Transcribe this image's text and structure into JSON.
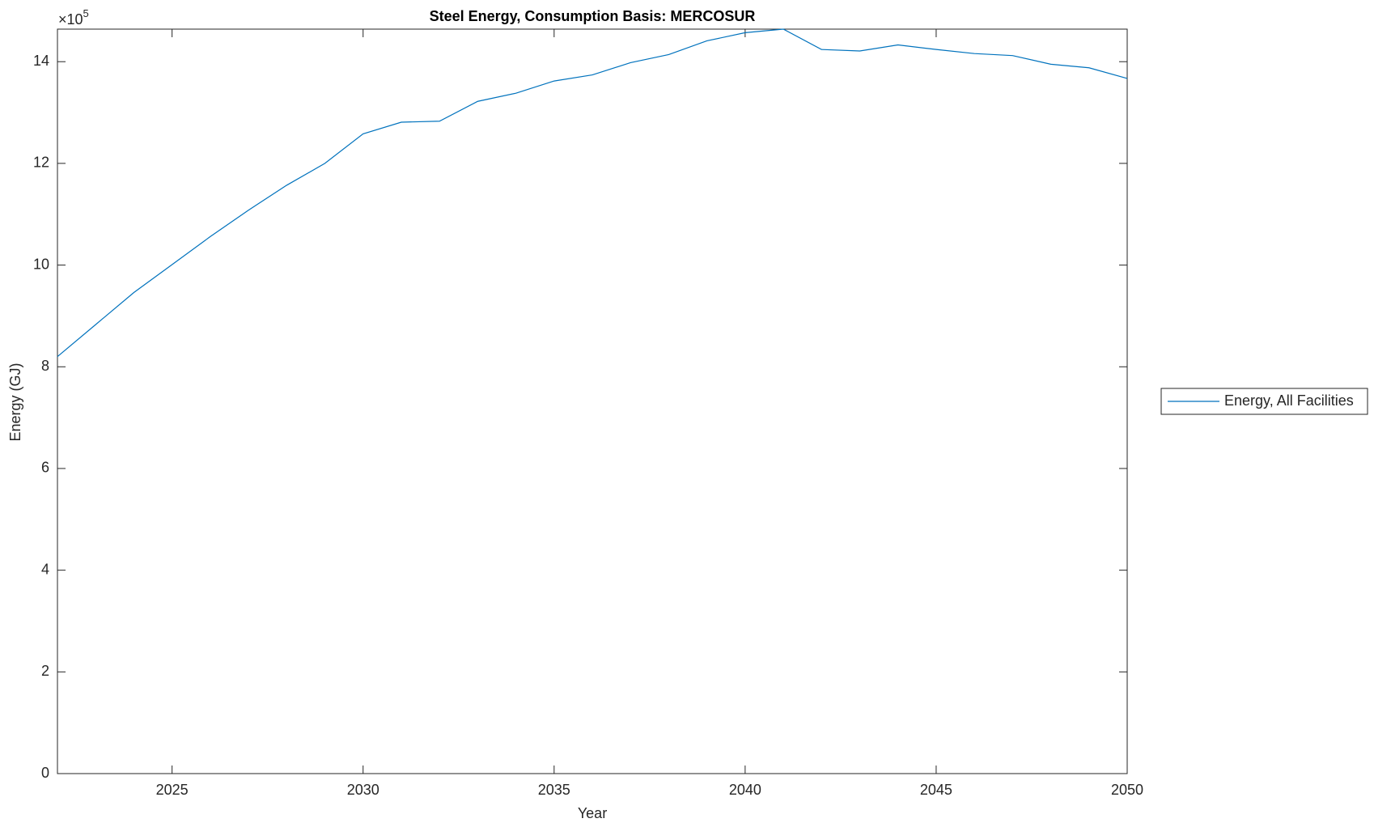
{
  "chart_data": {
    "type": "line",
    "title": "Steel Energy, Consumption Basis: MERCOSUR",
    "x_label": "Year",
    "y_label": "Energy (GJ)",
    "y_multiplier": {
      "base": "×10",
      "exponent": "5"
    },
    "x": [
      2022,
      2023,
      2024,
      2025,
      2026,
      2027,
      2028,
      2029,
      2030,
      2031,
      2032,
      2033,
      2034,
      2035,
      2036,
      2037,
      2038,
      2039,
      2040,
      2041,
      2042,
      2043,
      2044,
      2045,
      2046,
      2047,
      2048,
      2049,
      2050
    ],
    "series": [
      {
        "name": "Energy, All Facilities",
        "color": "#0072bd",
        "values": [
          8.2,
          8.83,
          9.46,
          10.01,
          10.56,
          11.08,
          11.57,
          12.0,
          12.58,
          12.81,
          12.83,
          13.22,
          13.38,
          13.62,
          13.74,
          13.98,
          14.14,
          14.41,
          14.57,
          14.64,
          14.24,
          14.21,
          14.33,
          14.24,
          14.16,
          14.12,
          13.95,
          13.88,
          13.67
        ]
      }
    ],
    "xlim": [
      2022,
      2050
    ],
    "xticks": [
      2025,
      2030,
      2035,
      2040,
      2045,
      2050
    ],
    "ylim": [
      0,
      14.64
    ],
    "yticks": [
      0,
      2,
      4,
      6,
      8,
      10,
      12,
      14
    ],
    "grid": false,
    "legend": "outside-right"
  }
}
